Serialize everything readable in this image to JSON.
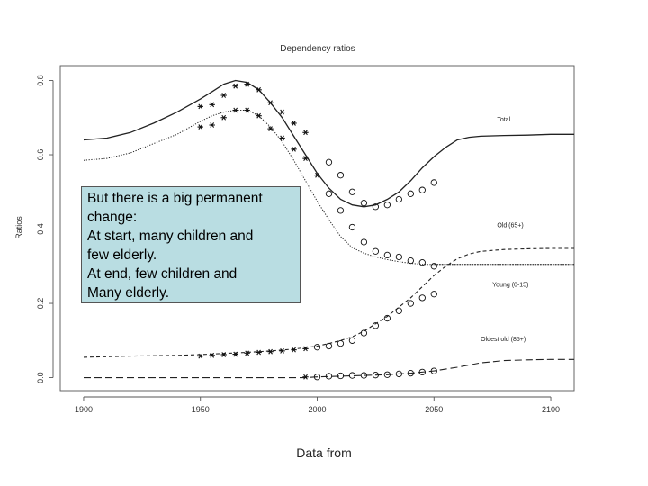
{
  "chart_data": {
    "type": "line",
    "title": "Dependency ratios",
    "xlabel": "",
    "ylabel": "Ratios",
    "xlim": [
      1890,
      2110
    ],
    "ylim": [
      -0.035,
      0.84
    ],
    "xticks": [
      1900,
      1950,
      2000,
      2050,
      2100
    ],
    "yticks": [
      0.0,
      0.2,
      0.4,
      0.6,
      0.8
    ],
    "xtick_labels": [
      "1900",
      "1950",
      "2000",
      "2050",
      "2100"
    ],
    "ytick_labels": [
      "0.0",
      "0.2",
      "0.4",
      "0.6",
      "0.8"
    ],
    "series": [
      {
        "name": "Total",
        "style": "solid",
        "x": [
          1900,
          1910,
          1920,
          1930,
          1940,
          1950,
          1955,
          1960,
          1965,
          1970,
          1975,
          1980,
          1985,
          1990,
          1995,
          2000,
          2005,
          2010,
          2015,
          2020,
          2025,
          2030,
          2035,
          2040,
          2045,
          2050,
          2055,
          2060,
          2065,
          2070,
          2075,
          2080,
          2090,
          2100,
          2110
        ],
        "y": [
          0.64,
          0.645,
          0.66,
          0.685,
          0.715,
          0.75,
          0.77,
          0.79,
          0.8,
          0.795,
          0.775,
          0.74,
          0.7,
          0.65,
          0.6,
          0.55,
          0.51,
          0.48,
          0.465,
          0.46,
          0.465,
          0.48,
          0.5,
          0.53,
          0.565,
          0.595,
          0.62,
          0.64,
          0.647,
          0.65,
          0.651,
          0.652,
          0.653,
          0.655,
          0.655
        ]
      },
      {
        "name": "Young (0-15)",
        "style": "dotted",
        "x": [
          1900,
          1910,
          1920,
          1930,
          1940,
          1950,
          1955,
          1960,
          1965,
          1970,
          1975,
          1980,
          1985,
          1990,
          1995,
          2000,
          2005,
          2010,
          2015,
          2020,
          2025,
          2030,
          2035,
          2040,
          2045,
          2050,
          2060,
          2080,
          2110
        ],
        "y": [
          0.585,
          0.59,
          0.605,
          0.63,
          0.655,
          0.69,
          0.705,
          0.715,
          0.72,
          0.72,
          0.705,
          0.675,
          0.635,
          0.585,
          0.53,
          0.475,
          0.425,
          0.38,
          0.35,
          0.335,
          0.325,
          0.318,
          0.312,
          0.308,
          0.305,
          0.305,
          0.305,
          0.305,
          0.305
        ]
      },
      {
        "name": "Old (65+)",
        "style": "dashed",
        "x": [
          1900,
          1920,
          1940,
          1950,
          1960,
          1970,
          1980,
          1990,
          2000,
          2005,
          2010,
          2015,
          2020,
          2025,
          2030,
          2035,
          2040,
          2045,
          2050,
          2055,
          2060,
          2065,
          2070,
          2080,
          2090,
          2100,
          2110
        ],
        "y": [
          0.055,
          0.058,
          0.06,
          0.062,
          0.065,
          0.068,
          0.072,
          0.077,
          0.085,
          0.092,
          0.1,
          0.11,
          0.125,
          0.145,
          0.165,
          0.19,
          0.215,
          0.245,
          0.275,
          0.3,
          0.32,
          0.333,
          0.34,
          0.345,
          0.347,
          0.348,
          0.348
        ]
      },
      {
        "name": "Oldest old (85+)",
        "style": "longdash",
        "x": [
          1900,
          1950,
          1995,
          2000,
          2010,
          2020,
          2030,
          2040,
          2050,
          2060,
          2070,
          2080,
          2090,
          2100,
          2110
        ],
        "y": [
          0.0,
          0.0,
          0.0,
          0.002,
          0.004,
          0.006,
          0.008,
          0.012,
          0.018,
          0.028,
          0.04,
          0.046,
          0.048,
          0.049,
          0.049
        ]
      }
    ],
    "hline": {
      "y": 0.305,
      "x_from": 2050,
      "x_to": 2110,
      "style": "dotted"
    },
    "observed_star": [
      {
        "series": "Total",
        "x": [
          1950,
          1955,
          1960,
          1965,
          1970,
          1975,
          1980,
          1985,
          1990,
          1995
        ],
        "y": [
          0.73,
          0.735,
          0.76,
          0.785,
          0.79,
          0.775,
          0.74,
          0.715,
          0.685,
          0.66
        ]
      },
      {
        "series": "Young (0-15)",
        "x": [
          1950,
          1955,
          1960,
          1965,
          1970,
          1975,
          1980,
          1985,
          1990,
          1995,
          2000
        ],
        "y": [
          0.675,
          0.68,
          0.7,
          0.72,
          0.72,
          0.705,
          0.67,
          0.645,
          0.615,
          0.59,
          0.545
        ]
      },
      {
        "series": "Old (65+)",
        "x": [
          1950,
          1955,
          1960,
          1965,
          1970,
          1975,
          1980,
          1985,
          1990,
          1995
        ],
        "y": [
          0.058,
          0.06,
          0.062,
          0.063,
          0.066,
          0.068,
          0.07,
          0.072,
          0.075,
          0.078
        ]
      },
      {
        "series": "Oldest old (85+)",
        "x": [
          1995
        ],
        "y": [
          0.002
        ]
      }
    ],
    "observed_circle": [
      {
        "series": "Total",
        "x": [
          2005,
          2010,
          2015,
          2020,
          2025,
          2030,
          2035,
          2040,
          2045,
          2050
        ],
        "y": [
          0.58,
          0.545,
          0.5,
          0.47,
          0.46,
          0.465,
          0.48,
          0.495,
          0.505,
          0.525
        ]
      },
      {
        "series": "Young (0-15)",
        "x": [
          2005,
          2010,
          2015,
          2020,
          2025,
          2030,
          2035,
          2040,
          2045,
          2050
        ],
        "y": [
          0.495,
          0.45,
          0.405,
          0.365,
          0.34,
          0.33,
          0.325,
          0.315,
          0.31,
          0.3
        ]
      },
      {
        "series": "Old (65+)",
        "x": [
          2000,
          2005,
          2010,
          2015,
          2020,
          2025,
          2030,
          2035,
          2040,
          2045,
          2050
        ],
        "y": [
          0.082,
          0.085,
          0.092,
          0.1,
          0.12,
          0.14,
          0.16,
          0.18,
          0.2,
          0.215,
          0.225
        ]
      },
      {
        "series": "Oldest old (85+)",
        "x": [
          2000,
          2005,
          2010,
          2015,
          2020,
          2025,
          2030,
          2035,
          2040,
          2045,
          2050
        ],
        "y": [
          0.002,
          0.004,
          0.005,
          0.006,
          0.006,
          0.007,
          0.008,
          0.01,
          0.012,
          0.015,
          0.018
        ]
      }
    ],
    "annotations": [
      {
        "text": "Total",
        "x": 2077,
        "y": 0.69
      },
      {
        "text": "Old (65+)",
        "x": 2077,
        "y": 0.405
      },
      {
        "text": "Young (0-15)",
        "x": 2075,
        "y": 0.245
      },
      {
        "text": "Oldest old (85+)",
        "x": 2070,
        "y": 0.098
      }
    ]
  },
  "overlay": {
    "lines": [
      "But there is a big permanent",
      "change:",
      "At start, many children and",
      "few elderly.",
      "At end, few children and",
      "Many elderly."
    ]
  },
  "footer": {
    "text": "Data from"
  }
}
